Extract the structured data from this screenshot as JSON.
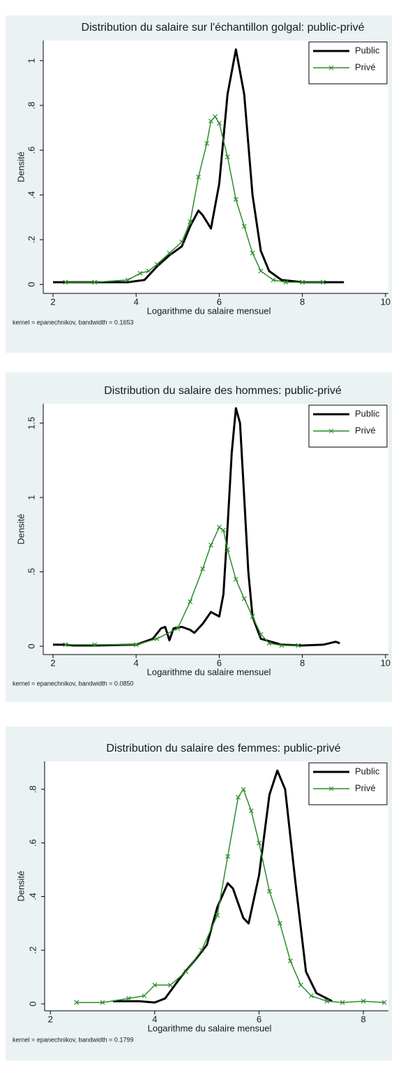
{
  "chart_data": [
    {
      "type": "line",
      "title": "Distribution du salaire sur l'échantillon golgal: public-privé",
      "xlabel": "Logarithme du salaire mensuel",
      "ylabel": "Densité",
      "note": "kernel = epanechnikov, bandwidth = 0.1653",
      "xlim": [
        1.765,
        10.07
      ],
      "ylim": [
        -0.04,
        1.09
      ],
      "xticks": [
        2,
        4,
        6,
        8,
        10
      ],
      "yticks": [
        0,
        {
          "value": 0.2,
          "label": ".2"
        },
        {
          "value": 0.4,
          "label": ".4"
        },
        {
          "value": 0.6,
          "label": ".6"
        },
        {
          "value": 0.8,
          "label": ".8"
        },
        1
      ],
      "legend": "top-right",
      "series": [
        {
          "name": "Public",
          "color": "#000000",
          "marker": "none",
          "x": [
            2,
            3,
            3.8,
            4.2,
            4.5,
            4.8,
            5.1,
            5.3,
            5.5,
            5.6,
            5.8,
            6.0,
            6.2,
            6.4,
            6.6,
            6.8,
            7.0,
            7.2,
            7.5,
            8,
            9
          ],
          "values": [
            0.01,
            0.01,
            0.01,
            0.02,
            0.08,
            0.13,
            0.17,
            0.26,
            0.33,
            0.31,
            0.25,
            0.45,
            0.85,
            1.05,
            0.85,
            0.4,
            0.15,
            0.06,
            0.02,
            0.01,
            0.01
          ]
        },
        {
          "name": "Privé",
          "color": "#2a8c2a",
          "marker": "x",
          "x": [
            2.3,
            3,
            3.8,
            4.1,
            4.3,
            4.5,
            4.8,
            5.1,
            5.3,
            5.5,
            5.7,
            5.8,
            5.9,
            6.0,
            6.2,
            6.4,
            6.6,
            6.8,
            7.0,
            7.3,
            7.6,
            8,
            8.5
          ],
          "values": [
            0.01,
            0.01,
            0.02,
            0.05,
            0.06,
            0.09,
            0.14,
            0.19,
            0.28,
            0.48,
            0.63,
            0.73,
            0.75,
            0.72,
            0.57,
            0.38,
            0.26,
            0.14,
            0.06,
            0.02,
            0.01,
            0.01,
            0.01
          ]
        }
      ]
    },
    {
      "type": "line",
      "title": "Distribution du salaire des hommes: public-privé",
      "xlabel": "Logarithme du salaire mensuel",
      "ylabel": "Densité",
      "note": "kernel = epanechnikov, bandwidth = 0.0850",
      "xlim": [
        1.765,
        10.07
      ],
      "ylim": [
        -0.056,
        1.63
      ],
      "xticks": [
        2,
        4,
        6,
        8,
        10
      ],
      "yticks": [
        0,
        {
          "value": 0.5,
          "label": ".5"
        },
        1,
        1.5
      ],
      "legend": "top-right",
      "series": [
        {
          "name": "Public",
          "color": "#000000",
          "marker": "none",
          "x": [
            2,
            2.3,
            2.5,
            3,
            4,
            4.4,
            4.6,
            4.7,
            4.8,
            4.9,
            5.1,
            5.3,
            5.4,
            5.6,
            5.8,
            6.0,
            6.1,
            6.2,
            6.3,
            6.4,
            6.5,
            6.6,
            6.7,
            6.8,
            7.0,
            7.5,
            8,
            8.5,
            8.8,
            8.9
          ],
          "values": [
            0.01,
            0.01,
            0.005,
            0.005,
            0.01,
            0.05,
            0.12,
            0.13,
            0.04,
            0.12,
            0.13,
            0.11,
            0.09,
            0.15,
            0.23,
            0.2,
            0.35,
            0.8,
            1.3,
            1.6,
            1.5,
            1.0,
            0.5,
            0.2,
            0.05,
            0.01,
            0.005,
            0.01,
            0.03,
            0.02
          ]
        },
        {
          "name": "Privé",
          "color": "#2a8c2a",
          "marker": "x",
          "x": [
            2.3,
            3,
            4,
            4.5,
            5,
            5.3,
            5.6,
            5.8,
            6.0,
            6.1,
            6.2,
            6.4,
            6.6,
            6.8,
            7.0,
            7.2,
            7.5,
            7.9
          ],
          "values": [
            0.01,
            0.01,
            0.01,
            0.05,
            0.12,
            0.3,
            0.52,
            0.68,
            0.8,
            0.78,
            0.65,
            0.45,
            0.32,
            0.2,
            0.08,
            0.02,
            0.005,
            0.005
          ]
        }
      ]
    },
    {
      "type": "line",
      "title": "Distribution du salaire des femmes: public-privé",
      "xlabel": "Logarithme du salaire mensuel",
      "ylabel": "Densité",
      "note": "kernel = epanechnikov, bandwidth = 0.1799",
      "xlim": [
        1.89,
        8.48
      ],
      "ylim": [
        -0.026,
        0.904
      ],
      "xticks": [
        2,
        4,
        6,
        8
      ],
      "yticks": [
        0,
        {
          "value": 0.2,
          "label": ".2"
        },
        {
          "value": 0.4,
          "label": ".4"
        },
        {
          "value": 0.6,
          "label": ".6"
        },
        {
          "value": 0.8,
          "label": ".8"
        }
      ],
      "legend": "top-right",
      "series": [
        {
          "name": "Public",
          "color": "#000000",
          "marker": "none",
          "x": [
            3.2,
            3.7,
            4.0,
            4.2,
            4.5,
            4.8,
            5.0,
            5.2,
            5.4,
            5.5,
            5.7,
            5.8,
            6.0,
            6.2,
            6.35,
            6.5,
            6.7,
            6.9,
            7.1,
            7.4
          ],
          "values": [
            0.01,
            0.01,
            0.005,
            0.02,
            0.1,
            0.17,
            0.22,
            0.36,
            0.45,
            0.43,
            0.32,
            0.3,
            0.48,
            0.78,
            0.87,
            0.8,
            0.45,
            0.12,
            0.04,
            0.01
          ]
        },
        {
          "name": "Privé",
          "color": "#2a8c2a",
          "marker": "x",
          "x": [
            2.5,
            3.0,
            3.5,
            3.8,
            4.0,
            4.3,
            4.6,
            4.9,
            5.2,
            5.4,
            5.6,
            5.7,
            5.85,
            6.0,
            6.2,
            6.4,
            6.6,
            6.8,
            7.0,
            7.3,
            7.6,
            8.0,
            8.4
          ],
          "values": [
            0.005,
            0.005,
            0.02,
            0.03,
            0.07,
            0.07,
            0.12,
            0.2,
            0.33,
            0.55,
            0.77,
            0.8,
            0.72,
            0.6,
            0.42,
            0.3,
            0.16,
            0.07,
            0.03,
            0.01,
            0.005,
            0.01,
            0.005
          ]
        }
      ]
    }
  ]
}
